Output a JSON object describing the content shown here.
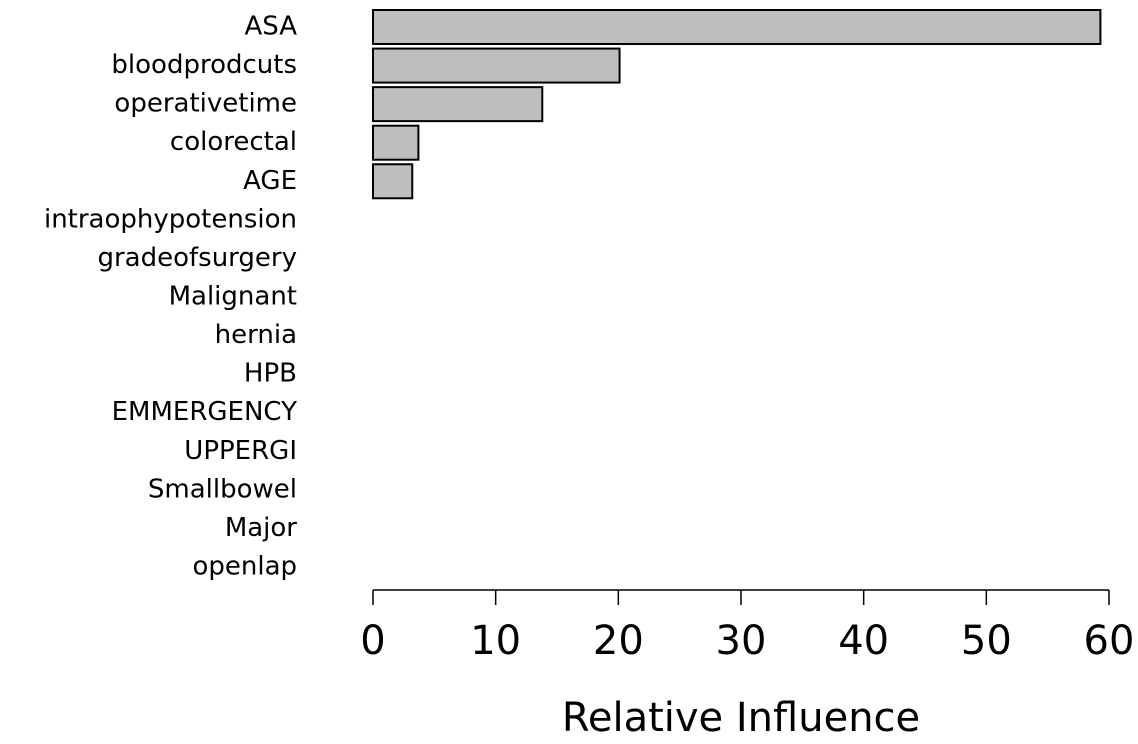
{
  "chart_data": {
    "type": "bar",
    "orientation": "horizontal",
    "categories": [
      "ASA",
      "bloodprodcuts",
      "operativetime",
      "colorectal",
      "AGE",
      "intraophypotension",
      "gradeofsurgery",
      "Malignant",
      "hernia",
      "HPB",
      "EMMERGENCY",
      "UPPERGI",
      "Smallbowel",
      "Major",
      "openlap"
    ],
    "values": [
      59.3,
      20.1,
      13.8,
      3.7,
      3.2,
      0,
      0,
      0,
      0,
      0,
      0,
      0,
      0,
      0,
      0
    ],
    "color": "#bebebe",
    "xlabel": "Relative Influence",
    "xlim": [
      0,
      60
    ],
    "xticks": [
      0,
      10,
      20,
      30,
      40,
      50,
      60
    ]
  }
}
